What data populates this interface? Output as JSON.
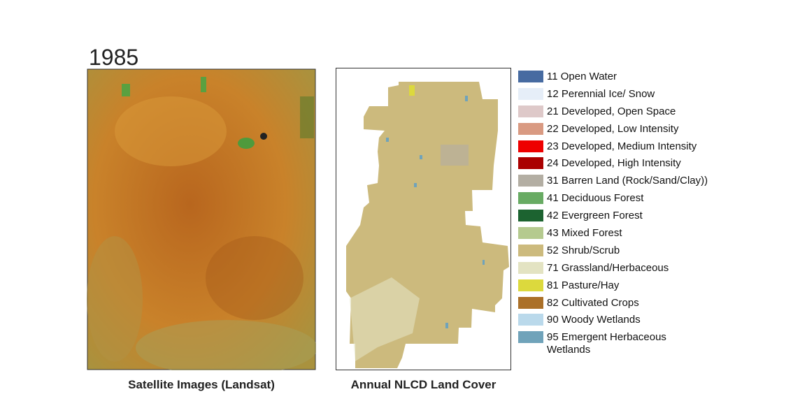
{
  "year": "1985",
  "panels": [
    {
      "caption": "Satellite Images (Landsat)"
    },
    {
      "caption": "Annual NLCD Land Cover"
    }
  ],
  "legend": [
    {
      "label": "11 Open Water",
      "color": "#476ba1"
    },
    {
      "label": "12 Perennial Ice/ Snow",
      "color": "#e6eef8"
    },
    {
      "label": "21 Developed, Open Space",
      "color": "#dec9c9"
    },
    {
      "label": "22 Developed, Low Intensity",
      "color": "#d99a82"
    },
    {
      "label": "23 Developed, Medium Intensity",
      "color": "#ee0000"
    },
    {
      "label": "24 Developed, High Intensity",
      "color": "#aa0000"
    },
    {
      "label": "31 Barren Land (Rock/Sand/Clay))",
      "color": "#b3aea3"
    },
    {
      "label": "41 Deciduous Forest",
      "color": "#68ab63"
    },
    {
      "label": "42 Evergreen Forest",
      "color": "#1c6330"
    },
    {
      "label": "43 Mixed Forest",
      "color": "#b5ca8f"
    },
    {
      "label": "52 Shrub/Scrub",
      "color": "#ccba7d"
    },
    {
      "label": "71 Grassland/Herbaceous",
      "color": "#e3e3c2"
    },
    {
      "label": "81 Pasture/Hay",
      "color": "#dcd93d"
    },
    {
      "label": "82 Cultivated Crops",
      "color": "#ab7028"
    },
    {
      "label": "90 Woody Wetlands",
      "color": "#bad9eb"
    },
    {
      "label": "95 Emergent Herbaceous Wetlands",
      "color": "#70a3ba"
    }
  ]
}
